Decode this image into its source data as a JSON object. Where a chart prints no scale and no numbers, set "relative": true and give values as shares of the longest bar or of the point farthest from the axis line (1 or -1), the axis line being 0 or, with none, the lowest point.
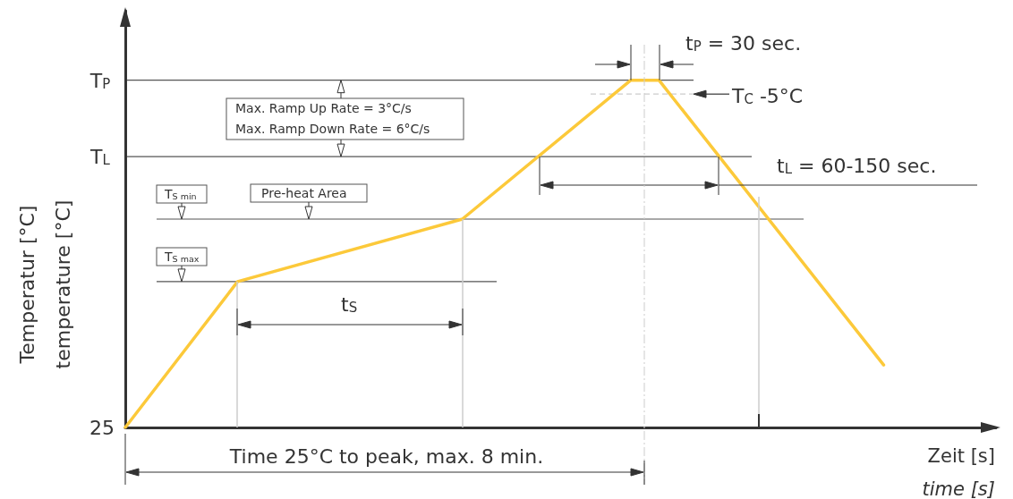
{
  "chart_data": {
    "type": "line",
    "relative": true,
    "marker": "none",
    "xlabel": "Zeit [s]\ntime [s]",
    "ylabel": "Temperatur [°C]\ntemperature [°C]",
    "categories": [
      null,
      null,
      null,
      null,
      null,
      null,
      null,
      null,
      null,
      null,
      null,
      null,
      null,
      null,
      null,
      null,
      null,
      null,
      null,
      null,
      null,
      null,
      null,
      null,
      null,
      null,
      null,
      null,
      null,
      null,
      null,
      null
    ],
    "series": [
      {
        "color": "#fcc93a",
        "values": [
          0,
          null,
          null,
          null,
          0.42,
          null,
          null,
          null,
          null,
          null,
          null,
          null,
          0.6,
          null,
          null,
          null,
          null,
          null,
          1,
          1,
          null,
          null,
          null,
          null,
          null,
          null,
          null,
          0.18,
          null,
          null,
          null,
          null
        ]
      }
    ],
    "ref_lines": [
      {
        "axis": "y",
        "value": 1,
        "label": "T$_{P}$"
      },
      {
        "axis": "y",
        "value": 0.78,
        "label": "T$_{L}$"
      },
      {
        "axis": "y",
        "value": 0.6,
        "label": "T$_{S min}$"
      },
      {
        "axis": "y",
        "value": 0.42,
        "label": "T$_{S max}$"
      },
      {
        "axis": "y",
        "value": 0.96,
        "label": "T$_{C}$  -5°C",
        "color": "#cccccc",
        "line_style": "dashed"
      }
    ],
    "annotations": [
      "Max. Ramp Up Rate = 3°C/s",
      "Max. Ramp Down Rate = 6°C/s",
      "Pre-heat Area",
      "t$_{S}$",
      "t$_{P}$ = 30 sec.",
      "t$_{L}$ = 60-150 sec.",
      "Time 25°C to peak, max. 8 min.",
      "25"
    ]
  }
}
